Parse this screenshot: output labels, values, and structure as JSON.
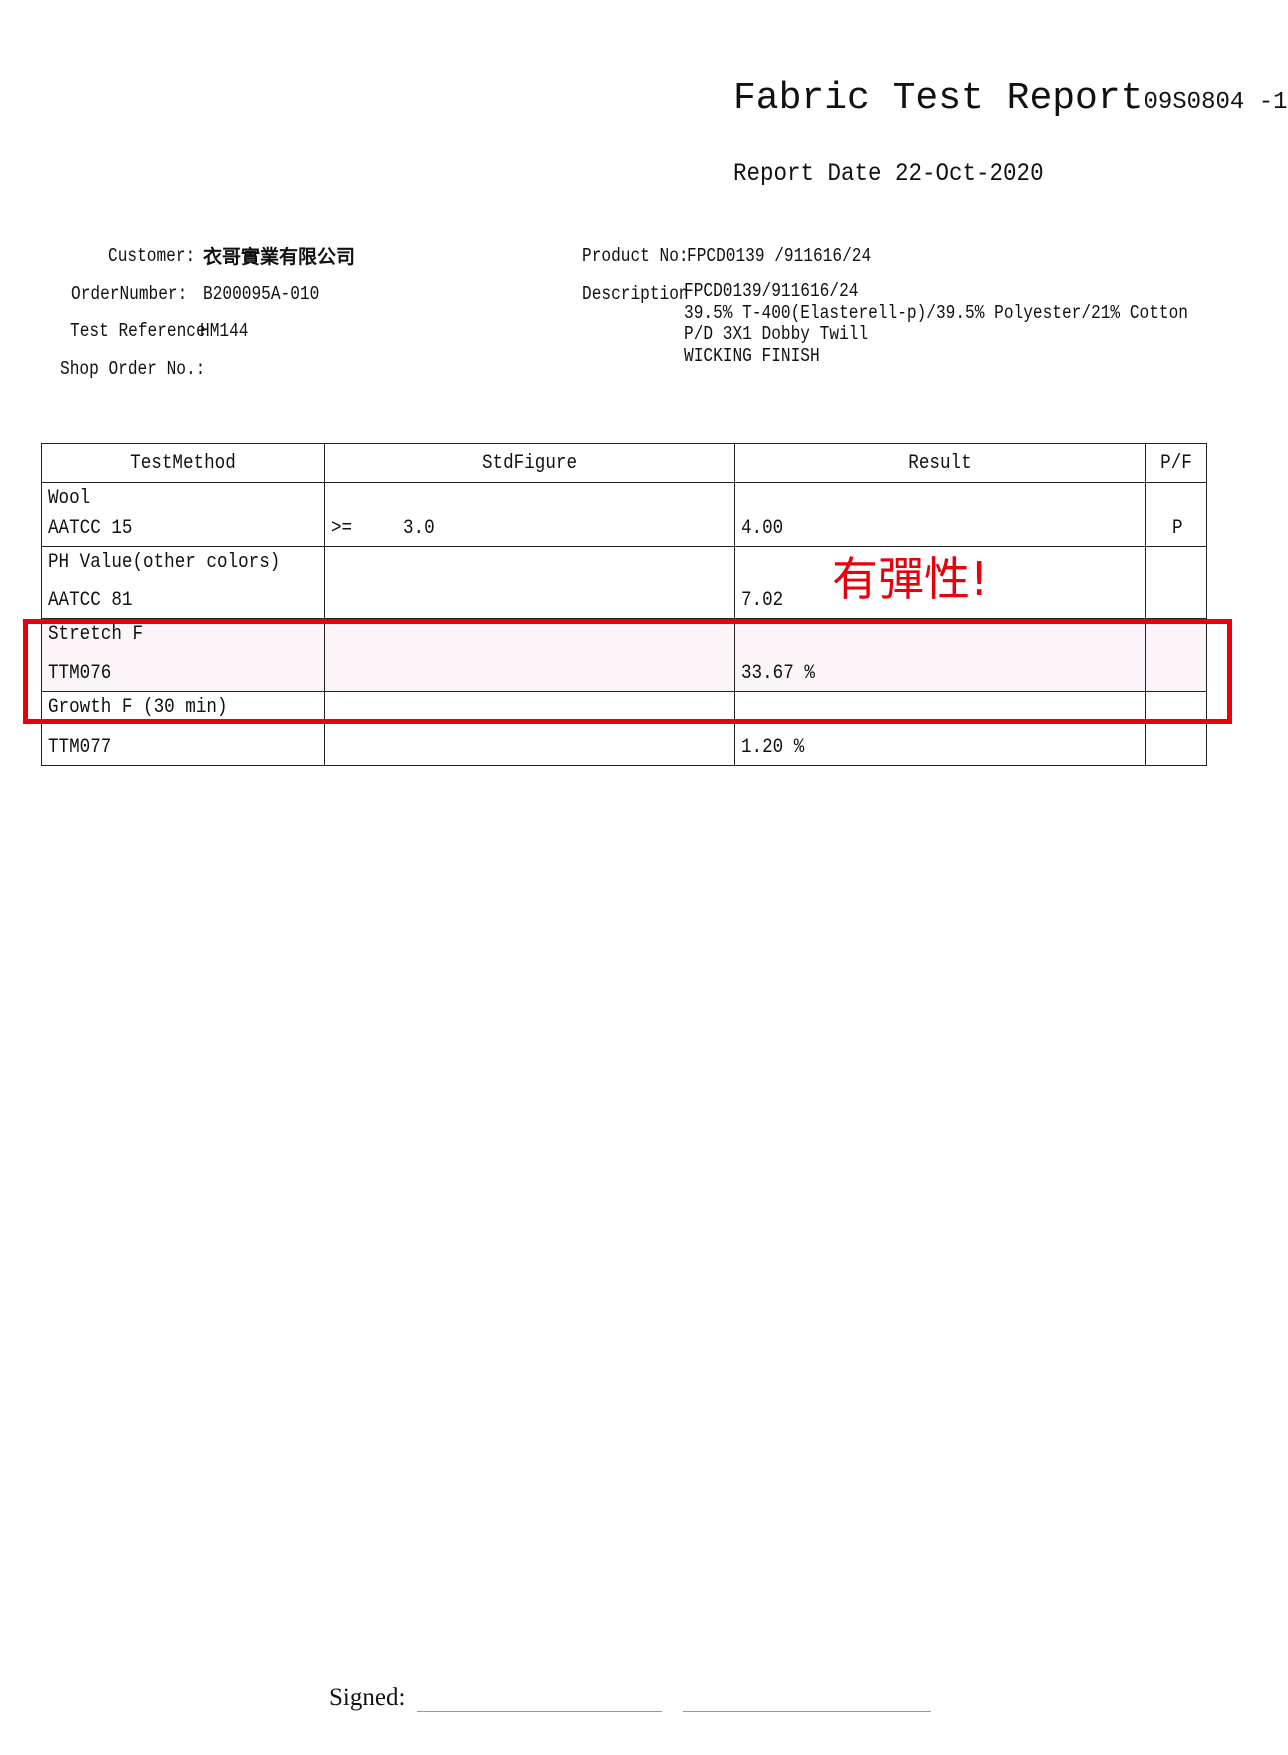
{
  "header": {
    "title": "Fabric Test Report",
    "report_no": "09S0804 -1",
    "report_date_label": "Report Date",
    "report_date": "22-Oct-2020"
  },
  "info": {
    "customer_label": "Customer:",
    "customer": "衣哥實業有限公司",
    "order_label": "OrderNumber:",
    "order": "B200095A-010",
    "test_ref_label": "Test Reference",
    "test_ref": "HM144",
    "shop_order_label": "Shop Order No.:",
    "product_label": "Product No:",
    "product": "FPCD0139 /911616/24",
    "description_label": "Description",
    "description": [
      "FPCD0139/911616/24",
      "39.5% T-400(Elasterell-p)/39.5% Polyester/21% Cotton",
      "P/D 3X1 Dobby Twill",
      "WICKING FINISH"
    ]
  },
  "table": {
    "headers": [
      "TestMethod",
      "StdFigure",
      "Result",
      "P/F"
    ],
    "rows": [
      {
        "name": "Wool",
        "method": "AATCC 15",
        "std_op": ">=",
        "std": "3.0",
        "result": "4.00",
        "pf": "P"
      },
      {
        "name": "PH Value(other colors)",
        "method": "AATCC 81",
        "std_op": "",
        "std": "",
        "result": "7.02",
        "pf": ""
      },
      {
        "name": "Stretch F",
        "method": "TTM076",
        "std_op": "",
        "std": "",
        "result": "33.67 %",
        "pf": ""
      },
      {
        "name": "Growth F (30 min)",
        "method": "TTM077",
        "std_op": "",
        "std": "",
        "result": "1.20 %",
        "pf": ""
      }
    ]
  },
  "annotation": {
    "text": "有彈性!",
    "color": "#e8000b",
    "highlighted_row": "Stretch F"
  },
  "footer": {
    "signed_label": "Signed:"
  }
}
